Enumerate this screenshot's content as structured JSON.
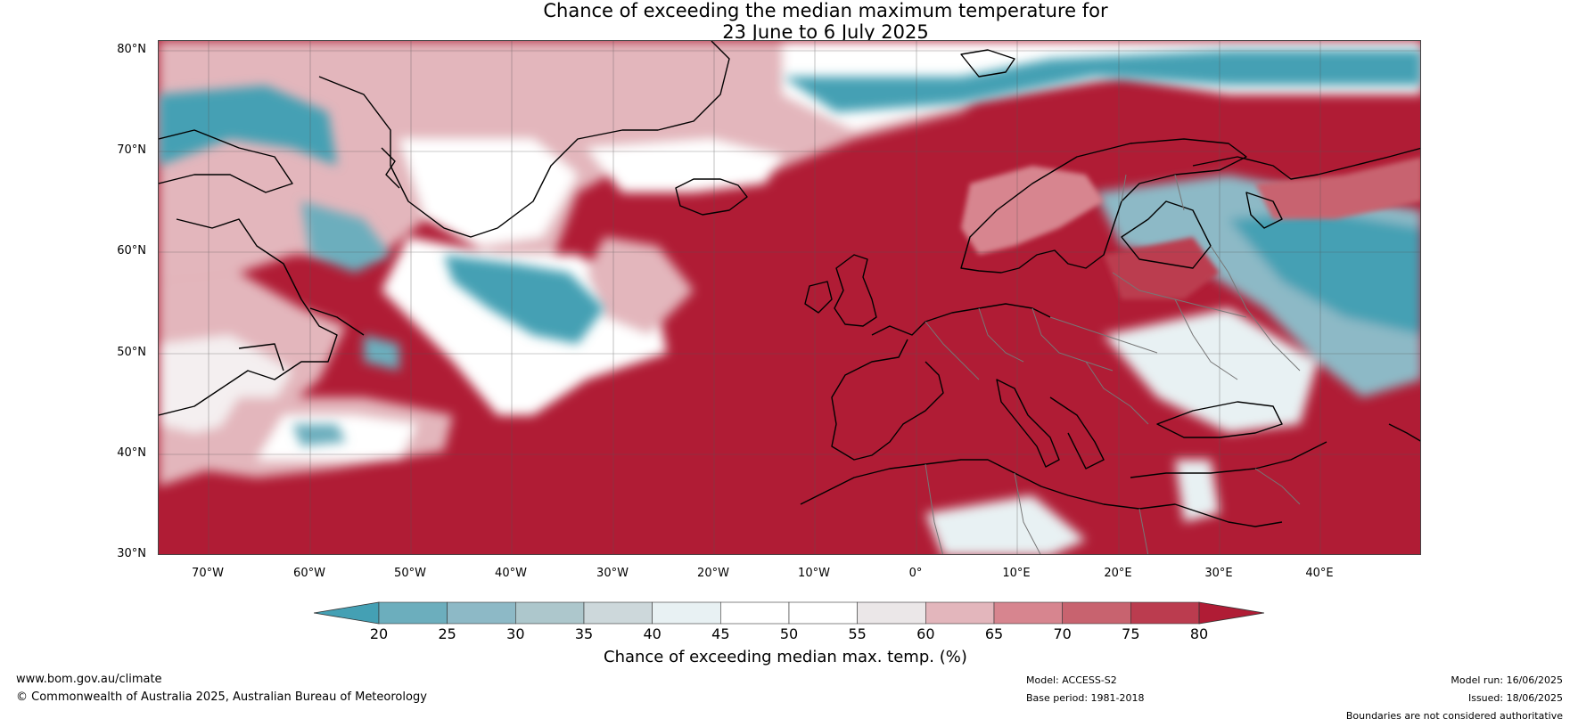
{
  "title": {
    "line1": "Chance of exceeding the median maximum temperature for",
    "line2": "23 June to 6 July 2025"
  },
  "map": {
    "base_color": "#b01c35",
    "latitude_labels": [
      "80°N",
      "70°N",
      "60°N",
      "50°N",
      "40°N",
      "30°N"
    ],
    "longitude_labels": [
      "70°W",
      "60°W",
      "50°W",
      "40°W",
      "30°W",
      "20°W",
      "10°W",
      "0°",
      "10°E",
      "20°E",
      "30°E",
      "40°E"
    ],
    "extent": {
      "lon_min": -75,
      "lon_max": 50,
      "lat_min": 30,
      "lat_max": 81
    }
  },
  "colorbar": {
    "ticks": [
      "20",
      "25",
      "30",
      "35",
      "40",
      "45",
      "50",
      "55",
      "60",
      "65",
      "70",
      "75",
      "80"
    ],
    "colors": [
      "#44a0b4",
      "#6caebd",
      "#8db9c6",
      "#adc7cc",
      "#cdd8db",
      "#e8f1f3",
      "#ffffff",
      "#ffffff",
      "#ebe7e8",
      "#e3b6bc",
      "#d7858f",
      "#c8636f",
      "#bb3c4f",
      "#b01c35"
    ],
    "label": "Chance of exceeding median max. temp. (%)"
  },
  "footer": {
    "website": "www.bom.gov.au/climate",
    "copyright": "© Commonwealth of Australia 2025, Australian Bureau of Meteorology",
    "model": "Model: ACCESS-S2",
    "base_period": "Base period: 1981-2018",
    "model_run": "Model run: 16/06/2025",
    "issued": "Issued: 18/06/2025",
    "disclaimer": "Boundaries are not considered authoritative"
  }
}
